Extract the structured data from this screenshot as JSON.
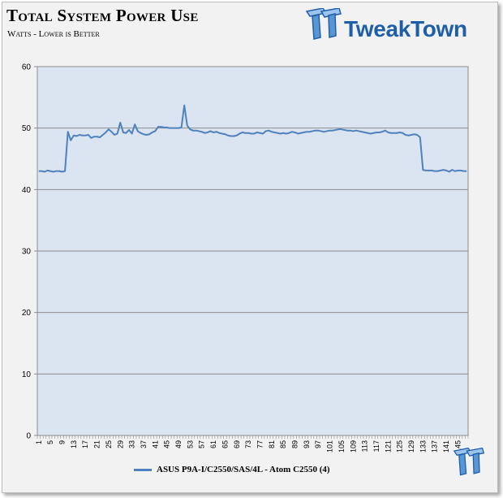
{
  "header": {
    "title": "Total System Power Use",
    "subtitle": "Watts - Lower is Better",
    "brand": "TweakTown"
  },
  "colors": {
    "line": "#4f81bd",
    "plot_background": "#dbe5f1",
    "gridline": "#8c8c8c",
    "brand": "#1f5fa8"
  },
  "icons": {
    "header_logo": "tweaktown-tt-logo-icon",
    "corner_logo": "tweaktown-tt-small-logo-icon"
  },
  "chart_data": {
    "type": "line",
    "title": "Total System Power Use",
    "subtitle": "Watts - Lower is Better",
    "xlabel": "",
    "ylabel": "",
    "ylim": [
      0,
      60
    ],
    "yticks": [
      0,
      10,
      20,
      30,
      40,
      50,
      60
    ],
    "grid": true,
    "legend": "bottom",
    "x_label_step": 4,
    "x": [
      1,
      2,
      3,
      4,
      5,
      6,
      7,
      8,
      9,
      10,
      11,
      12,
      13,
      14,
      15,
      16,
      17,
      18,
      19,
      20,
      21,
      22,
      23,
      24,
      25,
      26,
      27,
      28,
      29,
      30,
      31,
      32,
      33,
      34,
      35,
      36,
      37,
      38,
      39,
      40,
      41,
      42,
      43,
      44,
      45,
      46,
      47,
      48,
      49,
      50,
      51,
      52,
      53,
      54,
      55,
      56,
      57,
      58,
      59,
      60,
      61,
      62,
      63,
      64,
      65,
      66,
      67,
      68,
      69,
      70,
      71,
      72,
      73,
      74,
      75,
      76,
      77,
      78,
      79,
      80,
      81,
      82,
      83,
      84,
      85,
      86,
      87,
      88,
      89,
      90,
      91,
      92,
      93,
      94,
      95,
      96,
      97,
      98,
      99,
      100,
      101,
      102,
      103,
      104,
      105,
      106,
      107,
      108,
      109,
      110,
      111,
      112,
      113,
      114,
      115,
      116,
      117,
      118,
      119,
      120,
      121,
      122,
      123,
      124,
      125,
      126,
      127,
      128,
      129,
      130,
      131,
      132,
      133,
      134,
      135,
      136,
      137,
      138,
      139,
      140,
      141,
      142,
      143,
      144,
      145,
      146,
      147,
      148
    ],
    "series": [
      {
        "name": "ASUS P9A-I/C2550/SAS/4L - Atom C2550 (4)",
        "values": [
          43,
          43,
          42.9,
          43.1,
          43,
          42.9,
          43,
          43,
          42.9,
          43,
          49.4,
          48,
          48.8,
          48.7,
          48.9,
          48.8,
          48.8,
          48.9,
          48.4,
          48.6,
          48.6,
          48.5,
          48.9,
          49.3,
          49.8,
          49.4,
          48.9,
          49.1,
          50.9,
          49.3,
          49.2,
          49.7,
          49.1,
          50.6,
          49.5,
          49.2,
          49,
          48.9,
          49,
          49.3,
          49.5,
          50.2,
          50.2,
          50.1,
          50.1,
          50,
          50,
          50,
          50,
          50.1,
          53.7,
          50.4,
          49.8,
          49.6,
          49.6,
          49.5,
          49.4,
          49.2,
          49.3,
          49.5,
          49.3,
          49.4,
          49.2,
          49.1,
          49,
          48.8,
          48.7,
          48.7,
          48.8,
          49.1,
          49.3,
          49.2,
          49.2,
          49.1,
          49.1,
          49.3,
          49.2,
          49.1,
          49.5,
          49.6,
          49.4,
          49.3,
          49.2,
          49.1,
          49.2,
          49.1,
          49.2,
          49.4,
          49.3,
          49.1,
          49.2,
          49.3,
          49.4,
          49.4,
          49.5,
          49.6,
          49.6,
          49.5,
          49.4,
          49.5,
          49.6,
          49.6,
          49.7,
          49.8,
          49.8,
          49.7,
          49.6,
          49.6,
          49.5,
          49.6,
          49.5,
          49.4,
          49.3,
          49.2,
          49.1,
          49.2,
          49.3,
          49.3,
          49.4,
          49.6,
          49.3,
          49.2,
          49.2,
          49.2,
          49.3,
          49.2,
          48.9,
          48.8,
          48.9,
          49,
          48.9,
          48.5,
          43.2,
          43.1,
          43.1,
          43.1,
          43,
          43,
          43.1,
          43.2,
          43.1,
          42.9,
          43.2,
          43,
          43.1,
          43.1,
          43,
          43
        ]
      }
    ]
  }
}
